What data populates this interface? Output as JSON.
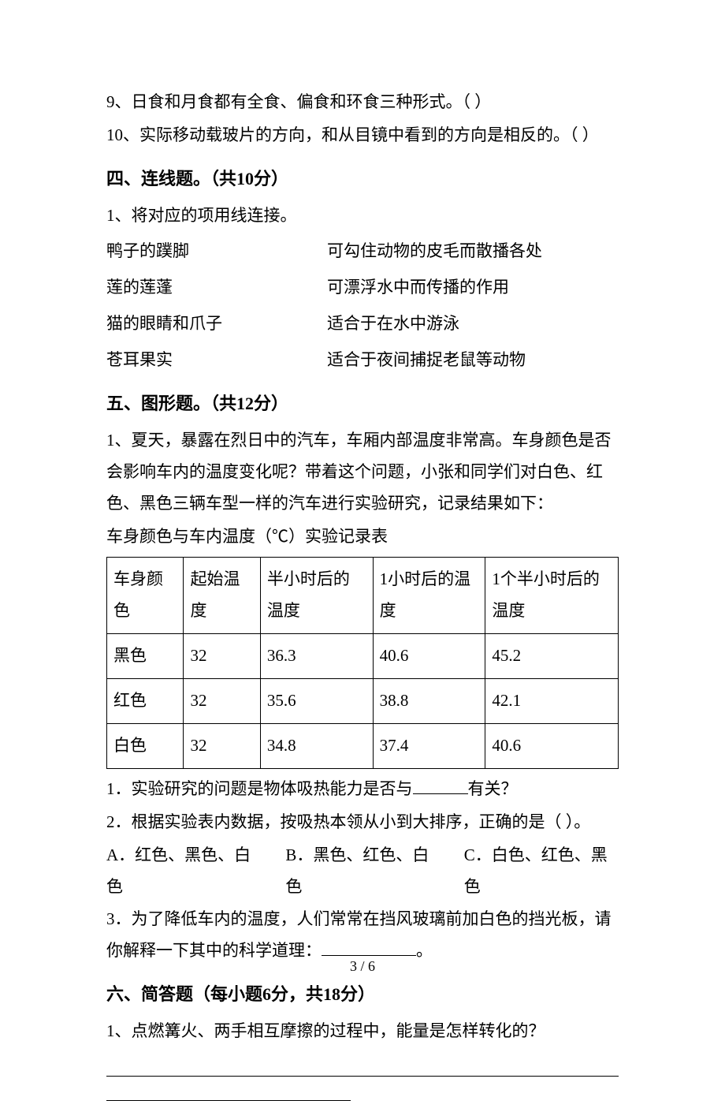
{
  "tf": {
    "q9": "9、日食和月食都有全食、偏食和环食三种形式。（        ）",
    "q10": "10、实际移动载玻片的方向，和从目镜中看到的方向是相反的。（        ）"
  },
  "sec4": {
    "heading": "四、连线题。（共10分）",
    "intro": "1、将对应的项用线连接。",
    "rows": [
      {
        "left": "鸭子的蹼脚",
        "right": "可勾住动物的皮毛而散播各处"
      },
      {
        "left": "莲的莲蓬",
        "right": "可漂浮水中而传播的作用"
      },
      {
        "left": "猫的眼睛和爪子",
        "right": "适合于在水中游泳"
      },
      {
        "left": "苍耳果实",
        "right": "适合于夜间捕捉老鼠等动物"
      }
    ]
  },
  "sec5": {
    "heading": "五、图形题。（共12分）",
    "intro": "1、夏天，暴露在烈日中的汽车，车厢内部温度非常高。车身颜色是否会影响车内的温度变化呢？带着这个问题，小张和同学们对白色、红色、黑色三辆车型一样的汽车进行实验研究，记录结果如下：",
    "table_caption": "车身颜色与车内温度（℃）实验记录表",
    "table": {
      "columns": [
        "车身颜色",
        "起始温度",
        "半小时后的温度",
        "1小时后的温度",
        "1个半小时后的温度"
      ],
      "rows": [
        [
          "黑色",
          "32",
          "36.3",
          "40.6",
          "45.2"
        ],
        [
          "红色",
          "32",
          "35.6",
          "38.8",
          "42.1"
        ],
        [
          "白色",
          "32",
          "34.8",
          "37.4",
          "40.6"
        ]
      ]
    },
    "q1_a": "1．实验研究的问题是物体吸热能力是否与",
    "q1_b": "有关？",
    "q2": "2．根据实验表内数据，按吸热本领从小到大排序，正确的是（    ）。",
    "q2_opts": {
      "A": "A．红色、黑色、白色",
      "B": "B．黑色、红色、白色",
      "C": "C．白色、红色、黑色"
    },
    "q3_a": "3．为了降低车内的温度，人们常常在挡风玻璃前加白色的挡光板，请你解释一下其中的科学道理：",
    "q3_b": "。"
  },
  "sec6": {
    "heading": "六、简答题（每小题6分，共18分）",
    "q1": "1、点燃篝火、两手相互摩擦的过程中，能量是怎样转化的？"
  },
  "footer": "3 / 6"
}
